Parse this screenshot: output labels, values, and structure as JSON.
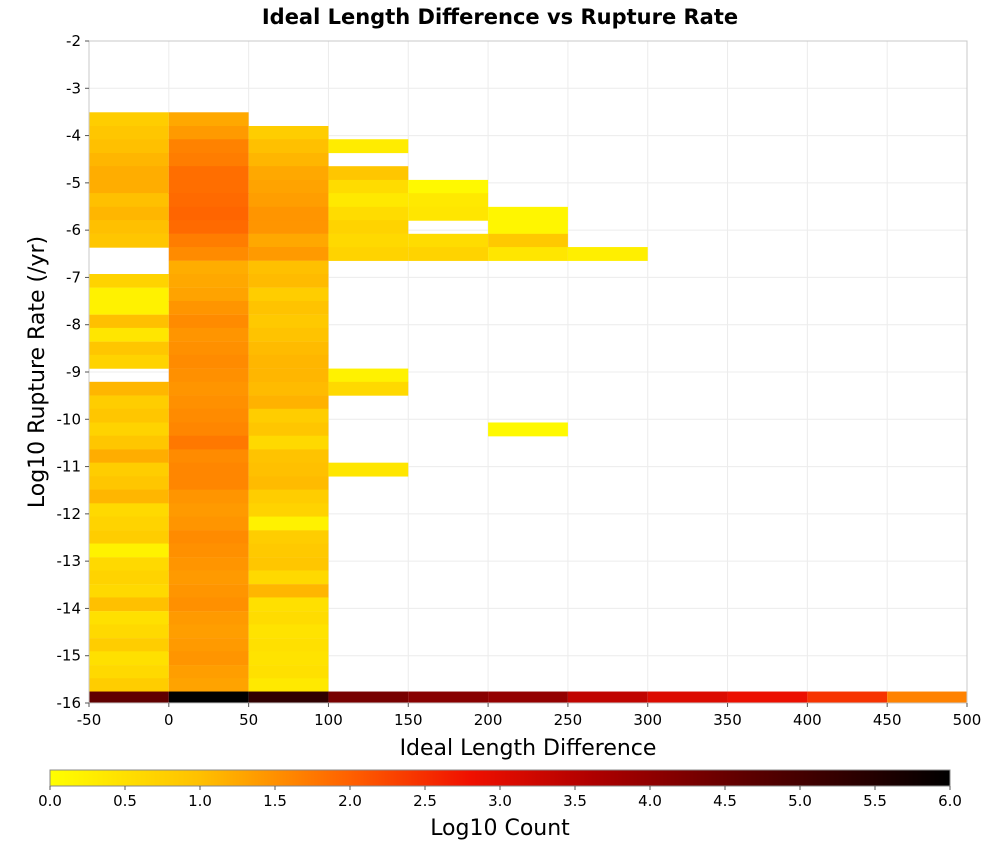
{
  "chart_data": {
    "type": "heatmap",
    "title": "Ideal Length Difference vs Rupture Rate",
    "xlabel": "Ideal Length Difference",
    "ylabel": "Log10 Rupture Rate (/yr)",
    "xlim": [
      -50,
      500
    ],
    "ylim": [
      -16,
      -2
    ],
    "x_ticks": [
      "-50",
      "0",
      "50",
      "100",
      "150",
      "200",
      "250",
      "300",
      "350",
      "400",
      "450",
      "500"
    ],
    "y_ticks": [
      "-2",
      "-3",
      "-4",
      "-5",
      "-6",
      "-7",
      "-8",
      "-9",
      "-10",
      "-11",
      "-12",
      "-13",
      "-14",
      "-15",
      "-16"
    ],
    "grid": true,
    "x_bin_width": 50,
    "y_bin_height": 0.285,
    "colorscale": {
      "label": "Log10 Count",
      "range": [
        0,
        6
      ],
      "ticks": [
        "0.0",
        "0.5",
        "1.0",
        "1.5",
        "2.0",
        "2.5",
        "3.0",
        "3.5",
        "4.0",
        "4.5",
        "5.0",
        "5.5",
        "6.0"
      ],
      "stops": [
        {
          "v": 0.0,
          "color": "#ffff00"
        },
        {
          "v": 1.0,
          "color": "#ffc000"
        },
        {
          "v": 2.0,
          "color": "#ff6000"
        },
        {
          "v": 2.8,
          "color": "#f01000"
        },
        {
          "v": 3.6,
          "color": "#b00000"
        },
        {
          "v": 4.6,
          "color": "#600000"
        },
        {
          "v": 6.0,
          "color": "#000000"
        }
      ]
    },
    "columns": [
      {
        "x0": -50,
        "values": [
          {
            "y": -3.65,
            "v": 0.8
          },
          {
            "y": -3.94,
            "v": 0.9
          },
          {
            "y": -4.22,
            "v": 1.0
          },
          {
            "y": -4.51,
            "v": 1.1
          },
          {
            "y": -4.79,
            "v": 1.2
          },
          {
            "y": -5.08,
            "v": 1.2
          },
          {
            "y": -5.36,
            "v": 1.0
          },
          {
            "y": -5.65,
            "v": 1.1
          },
          {
            "y": -5.93,
            "v": 1.0
          },
          {
            "y": -6.22,
            "v": 0.9
          },
          {
            "y": -7.07,
            "v": 0.7
          },
          {
            "y": -7.36,
            "v": 0.2
          },
          {
            "y": -7.64,
            "v": 0.2
          },
          {
            "y": -7.93,
            "v": 1.0
          },
          {
            "y": -8.21,
            "v": 0.4
          },
          {
            "y": -8.5,
            "v": 0.9
          },
          {
            "y": -8.78,
            "v": 0.7
          },
          {
            "y": -9.35,
            "v": 1.1
          },
          {
            "y": -9.64,
            "v": 0.8
          },
          {
            "y": -9.92,
            "v": 0.9
          },
          {
            "y": -10.21,
            "v": 0.7
          },
          {
            "y": -10.49,
            "v": 0.9
          },
          {
            "y": -10.78,
            "v": 1.2
          },
          {
            "y": -11.06,
            "v": 0.8
          },
          {
            "y": -11.35,
            "v": 0.9
          },
          {
            "y": -11.63,
            "v": 1.1
          },
          {
            "y": -11.92,
            "v": 0.6
          },
          {
            "y": -12.2,
            "v": 0.7
          },
          {
            "y": -12.49,
            "v": 0.8
          },
          {
            "y": -12.77,
            "v": 0.2
          },
          {
            "y": -13.06,
            "v": 0.6
          },
          {
            "y": -13.34,
            "v": 0.7
          },
          {
            "y": -13.63,
            "v": 0.6
          },
          {
            "y": -13.91,
            "v": 1.0
          },
          {
            "y": -14.2,
            "v": 0.5
          },
          {
            "y": -14.48,
            "v": 0.6
          },
          {
            "y": -14.77,
            "v": 0.8
          },
          {
            "y": -15.05,
            "v": 0.5
          },
          {
            "y": -15.34,
            "v": 0.6
          },
          {
            "y": -15.62,
            "v": 0.8
          },
          {
            "y": -15.9,
            "v": 4.6
          }
        ]
      },
      {
        "x0": 0,
        "values": [
          {
            "y": -3.65,
            "v": 1.25
          },
          {
            "y": -3.94,
            "v": 1.4
          },
          {
            "y": -4.22,
            "v": 1.65
          },
          {
            "y": -4.51,
            "v": 1.7
          },
          {
            "y": -4.79,
            "v": 1.85
          },
          {
            "y": -5.08,
            "v": 1.85
          },
          {
            "y": -5.36,
            "v": 1.9
          },
          {
            "y": -5.65,
            "v": 1.95
          },
          {
            "y": -5.93,
            "v": 1.9
          },
          {
            "y": -6.22,
            "v": 1.7
          },
          {
            "y": -6.5,
            "v": 1.55
          },
          {
            "y": -6.79,
            "v": 1.2
          },
          {
            "y": -7.07,
            "v": 1.25
          },
          {
            "y": -7.36,
            "v": 1.3
          },
          {
            "y": -7.64,
            "v": 1.45
          },
          {
            "y": -7.93,
            "v": 1.55
          },
          {
            "y": -8.21,
            "v": 1.45
          },
          {
            "y": -8.5,
            "v": 1.5
          },
          {
            "y": -8.78,
            "v": 1.55
          },
          {
            "y": -9.07,
            "v": 1.5
          },
          {
            "y": -9.35,
            "v": 1.45
          },
          {
            "y": -9.64,
            "v": 1.5
          },
          {
            "y": -9.92,
            "v": 1.55
          },
          {
            "y": -10.21,
            "v": 1.6
          },
          {
            "y": -10.49,
            "v": 1.75
          },
          {
            "y": -10.78,
            "v": 1.55
          },
          {
            "y": -11.06,
            "v": 1.6
          },
          {
            "y": -11.35,
            "v": 1.6
          },
          {
            "y": -11.63,
            "v": 1.45
          },
          {
            "y": -11.92,
            "v": 1.4
          },
          {
            "y": -12.2,
            "v": 1.45
          },
          {
            "y": -12.49,
            "v": 1.55
          },
          {
            "y": -12.77,
            "v": 1.5
          },
          {
            "y": -13.06,
            "v": 1.45
          },
          {
            "y": -13.34,
            "v": 1.4
          },
          {
            "y": -13.63,
            "v": 1.45
          },
          {
            "y": -13.91,
            "v": 1.5
          },
          {
            "y": -14.2,
            "v": 1.4
          },
          {
            "y": -14.48,
            "v": 1.35
          },
          {
            "y": -14.77,
            "v": 1.4
          },
          {
            "y": -15.05,
            "v": 1.45
          },
          {
            "y": -15.34,
            "v": 1.35
          },
          {
            "y": -15.62,
            "v": 1.3
          },
          {
            "y": -15.9,
            "v": 6.0
          }
        ]
      },
      {
        "x0": 50,
        "values": [
          {
            "y": -3.94,
            "v": 0.8
          },
          {
            "y": -4.22,
            "v": 1.0
          },
          {
            "y": -4.51,
            "v": 1.1
          },
          {
            "y": -4.79,
            "v": 1.25
          },
          {
            "y": -5.08,
            "v": 1.3
          },
          {
            "y": -5.36,
            "v": 1.35
          },
          {
            "y": -5.65,
            "v": 1.45
          },
          {
            "y": -5.93,
            "v": 1.45
          },
          {
            "y": -6.22,
            "v": 1.25
          },
          {
            "y": -6.5,
            "v": 1.4
          },
          {
            "y": -6.79,
            "v": 1.0
          },
          {
            "y": -7.07,
            "v": 1.05
          },
          {
            "y": -7.36,
            "v": 0.8
          },
          {
            "y": -7.64,
            "v": 0.95
          },
          {
            "y": -7.93,
            "v": 0.85
          },
          {
            "y": -8.21,
            "v": 0.95
          },
          {
            "y": -8.5,
            "v": 1.05
          },
          {
            "y": -8.78,
            "v": 1.1
          },
          {
            "y": -9.07,
            "v": 1.1
          },
          {
            "y": -9.35,
            "v": 1.05
          },
          {
            "y": -9.64,
            "v": 1.15
          },
          {
            "y": -9.92,
            "v": 0.8
          },
          {
            "y": -10.21,
            "v": 0.9
          },
          {
            "y": -10.49,
            "v": 0.6
          },
          {
            "y": -10.78,
            "v": 0.95
          },
          {
            "y": -11.06,
            "v": 1.0
          },
          {
            "y": -11.35,
            "v": 1.05
          },
          {
            "y": -11.63,
            "v": 0.8
          },
          {
            "y": -11.92,
            "v": 0.7
          },
          {
            "y": -12.2,
            "v": 0.2
          },
          {
            "y": -12.49,
            "v": 0.8
          },
          {
            "y": -12.77,
            "v": 0.85
          },
          {
            "y": -13.06,
            "v": 0.9
          },
          {
            "y": -13.34,
            "v": 0.6
          },
          {
            "y": -13.63,
            "v": 1.1
          },
          {
            "y": -13.91,
            "v": 0.5
          },
          {
            "y": -14.2,
            "v": 0.55
          },
          {
            "y": -14.48,
            "v": 0.45
          },
          {
            "y": -14.77,
            "v": 0.5
          },
          {
            "y": -15.05,
            "v": 0.45
          },
          {
            "y": -15.34,
            "v": 0.5
          },
          {
            "y": -15.62,
            "v": 0.35
          },
          {
            "y": -15.9,
            "v": 5.3
          }
        ]
      },
      {
        "x0": 100,
        "values": [
          {
            "y": -4.22,
            "v": 0.3
          },
          {
            "y": -4.79,
            "v": 0.9
          },
          {
            "y": -5.08,
            "v": 0.55
          },
          {
            "y": -5.36,
            "v": 0.35
          },
          {
            "y": -5.65,
            "v": 0.55
          },
          {
            "y": -5.93,
            "v": 0.7
          },
          {
            "y": -6.22,
            "v": 0.6
          },
          {
            "y": -6.5,
            "v": 0.7
          },
          {
            "y": -9.07,
            "v": 0.2
          },
          {
            "y": -9.35,
            "v": 0.6
          },
          {
            "y": -11.06,
            "v": 0.4
          },
          {
            "y": -15.9,
            "v": 4.3
          }
        ]
      },
      {
        "x0": 150,
        "values": [
          {
            "y": -5.08,
            "v": 0.1
          },
          {
            "y": -5.36,
            "v": 0.35
          },
          {
            "y": -5.65,
            "v": 0.4
          },
          {
            "y": -6.22,
            "v": 0.55
          },
          {
            "y": -6.5,
            "v": 0.7
          },
          {
            "y": -15.9,
            "v": 4.1
          }
        ]
      },
      {
        "x0": 200,
        "values": [
          {
            "y": -5.65,
            "v": 0.15
          },
          {
            "y": -5.93,
            "v": 0.15
          },
          {
            "y": -6.22,
            "v": 0.85
          },
          {
            "y": -6.5,
            "v": 0.4
          },
          {
            "y": -10.21,
            "v": 0.1
          },
          {
            "y": -15.9,
            "v": 3.95
          }
        ]
      },
      {
        "x0": 250,
        "values": [
          {
            "y": -6.5,
            "v": 0.25
          },
          {
            "y": -15.9,
            "v": 3.4
          }
        ]
      },
      {
        "x0": 300,
        "values": [
          {
            "y": -15.9,
            "v": 3.05
          }
        ]
      },
      {
        "x0": 350,
        "values": [
          {
            "y": -15.9,
            "v": 2.85
          }
        ]
      },
      {
        "x0": 400,
        "values": [
          {
            "y": -15.9,
            "v": 2.45
          }
        ]
      },
      {
        "x0": 450,
        "values": [
          {
            "y": -15.9,
            "v": 1.65
          }
        ]
      }
    ]
  }
}
